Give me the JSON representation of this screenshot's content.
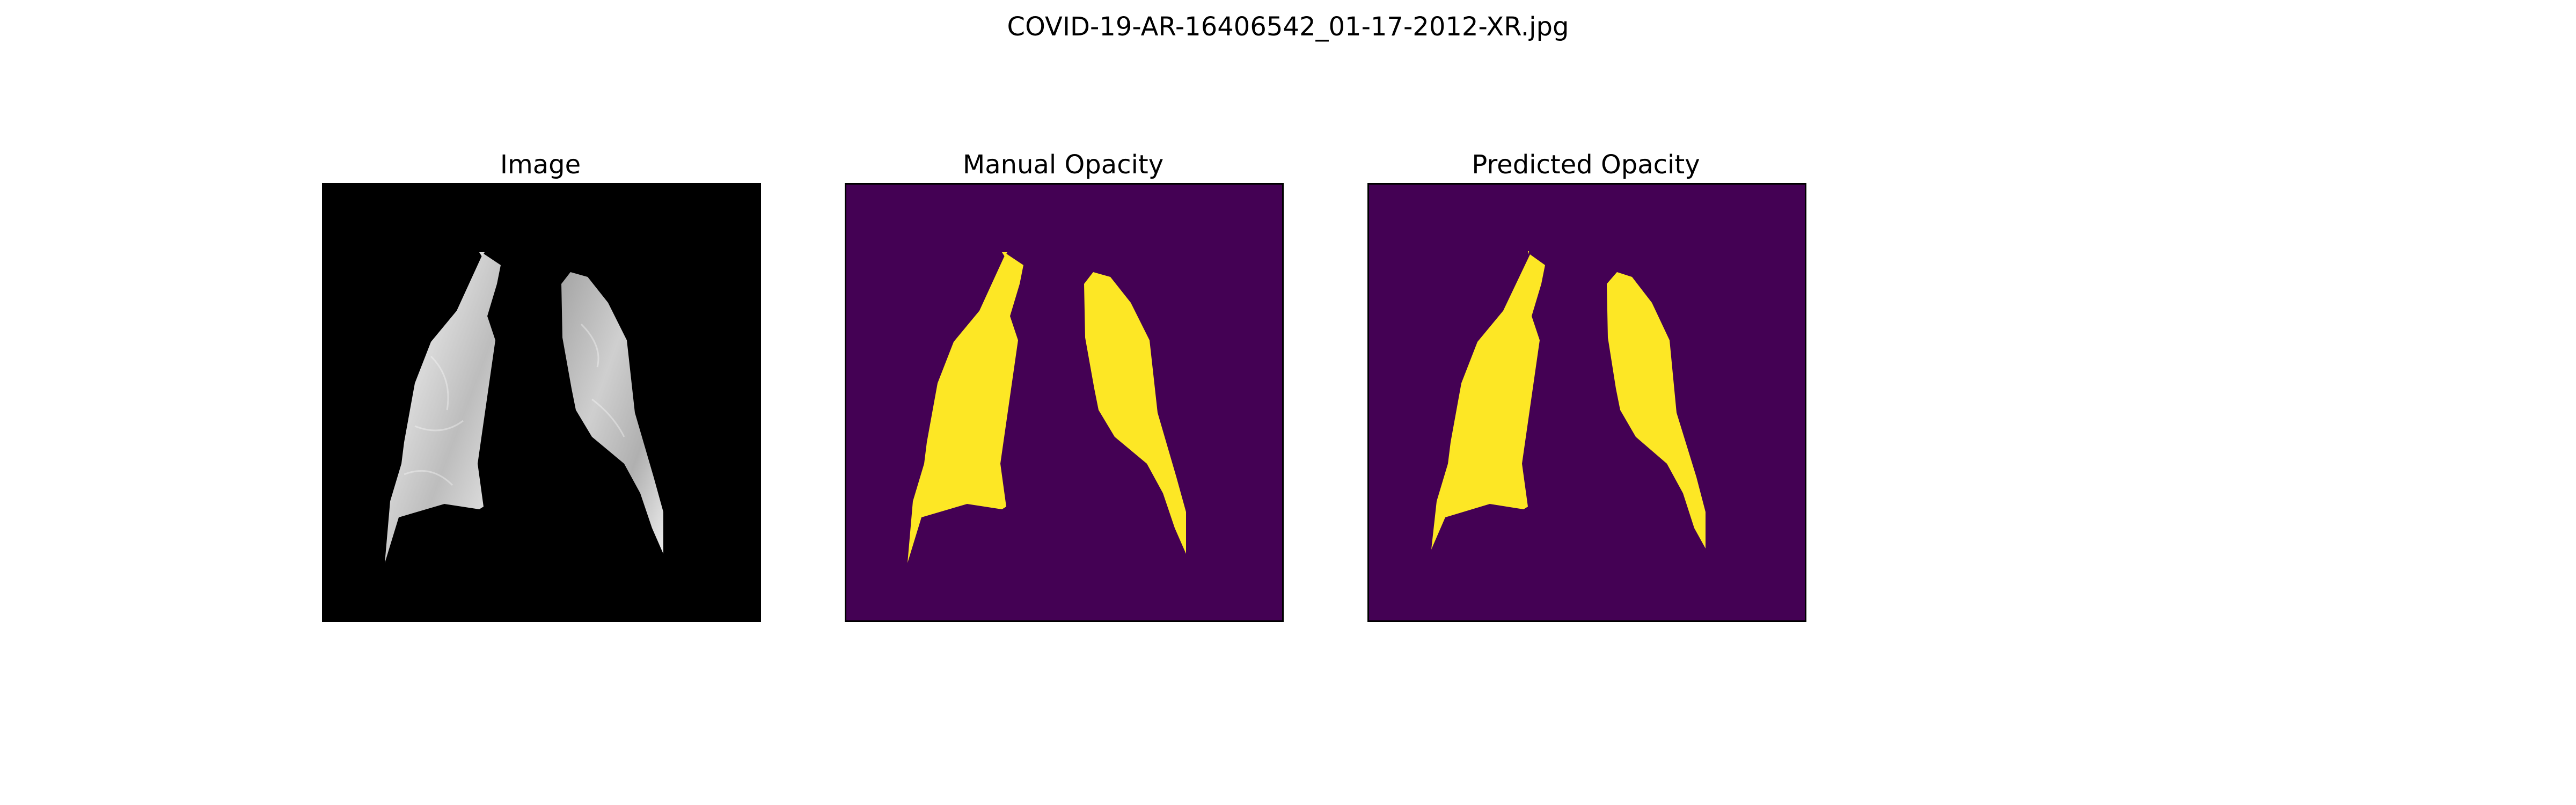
{
  "figure": {
    "title": "COVID-19-AR-16406542_01-17-2012-XR.jpg"
  },
  "panels": [
    {
      "title": "Image",
      "kind": "xray"
    },
    {
      "title": "Manual Opacity",
      "kind": "mask"
    },
    {
      "title": "Predicted Opacity",
      "kind": "mask"
    }
  ],
  "colors": {
    "mask_background": "#440154",
    "mask_foreground": "#fde725",
    "image_background": "#000000",
    "lung_tissue_light": "#e6e6e6",
    "lung_tissue_dark": "#8c8c8c"
  }
}
